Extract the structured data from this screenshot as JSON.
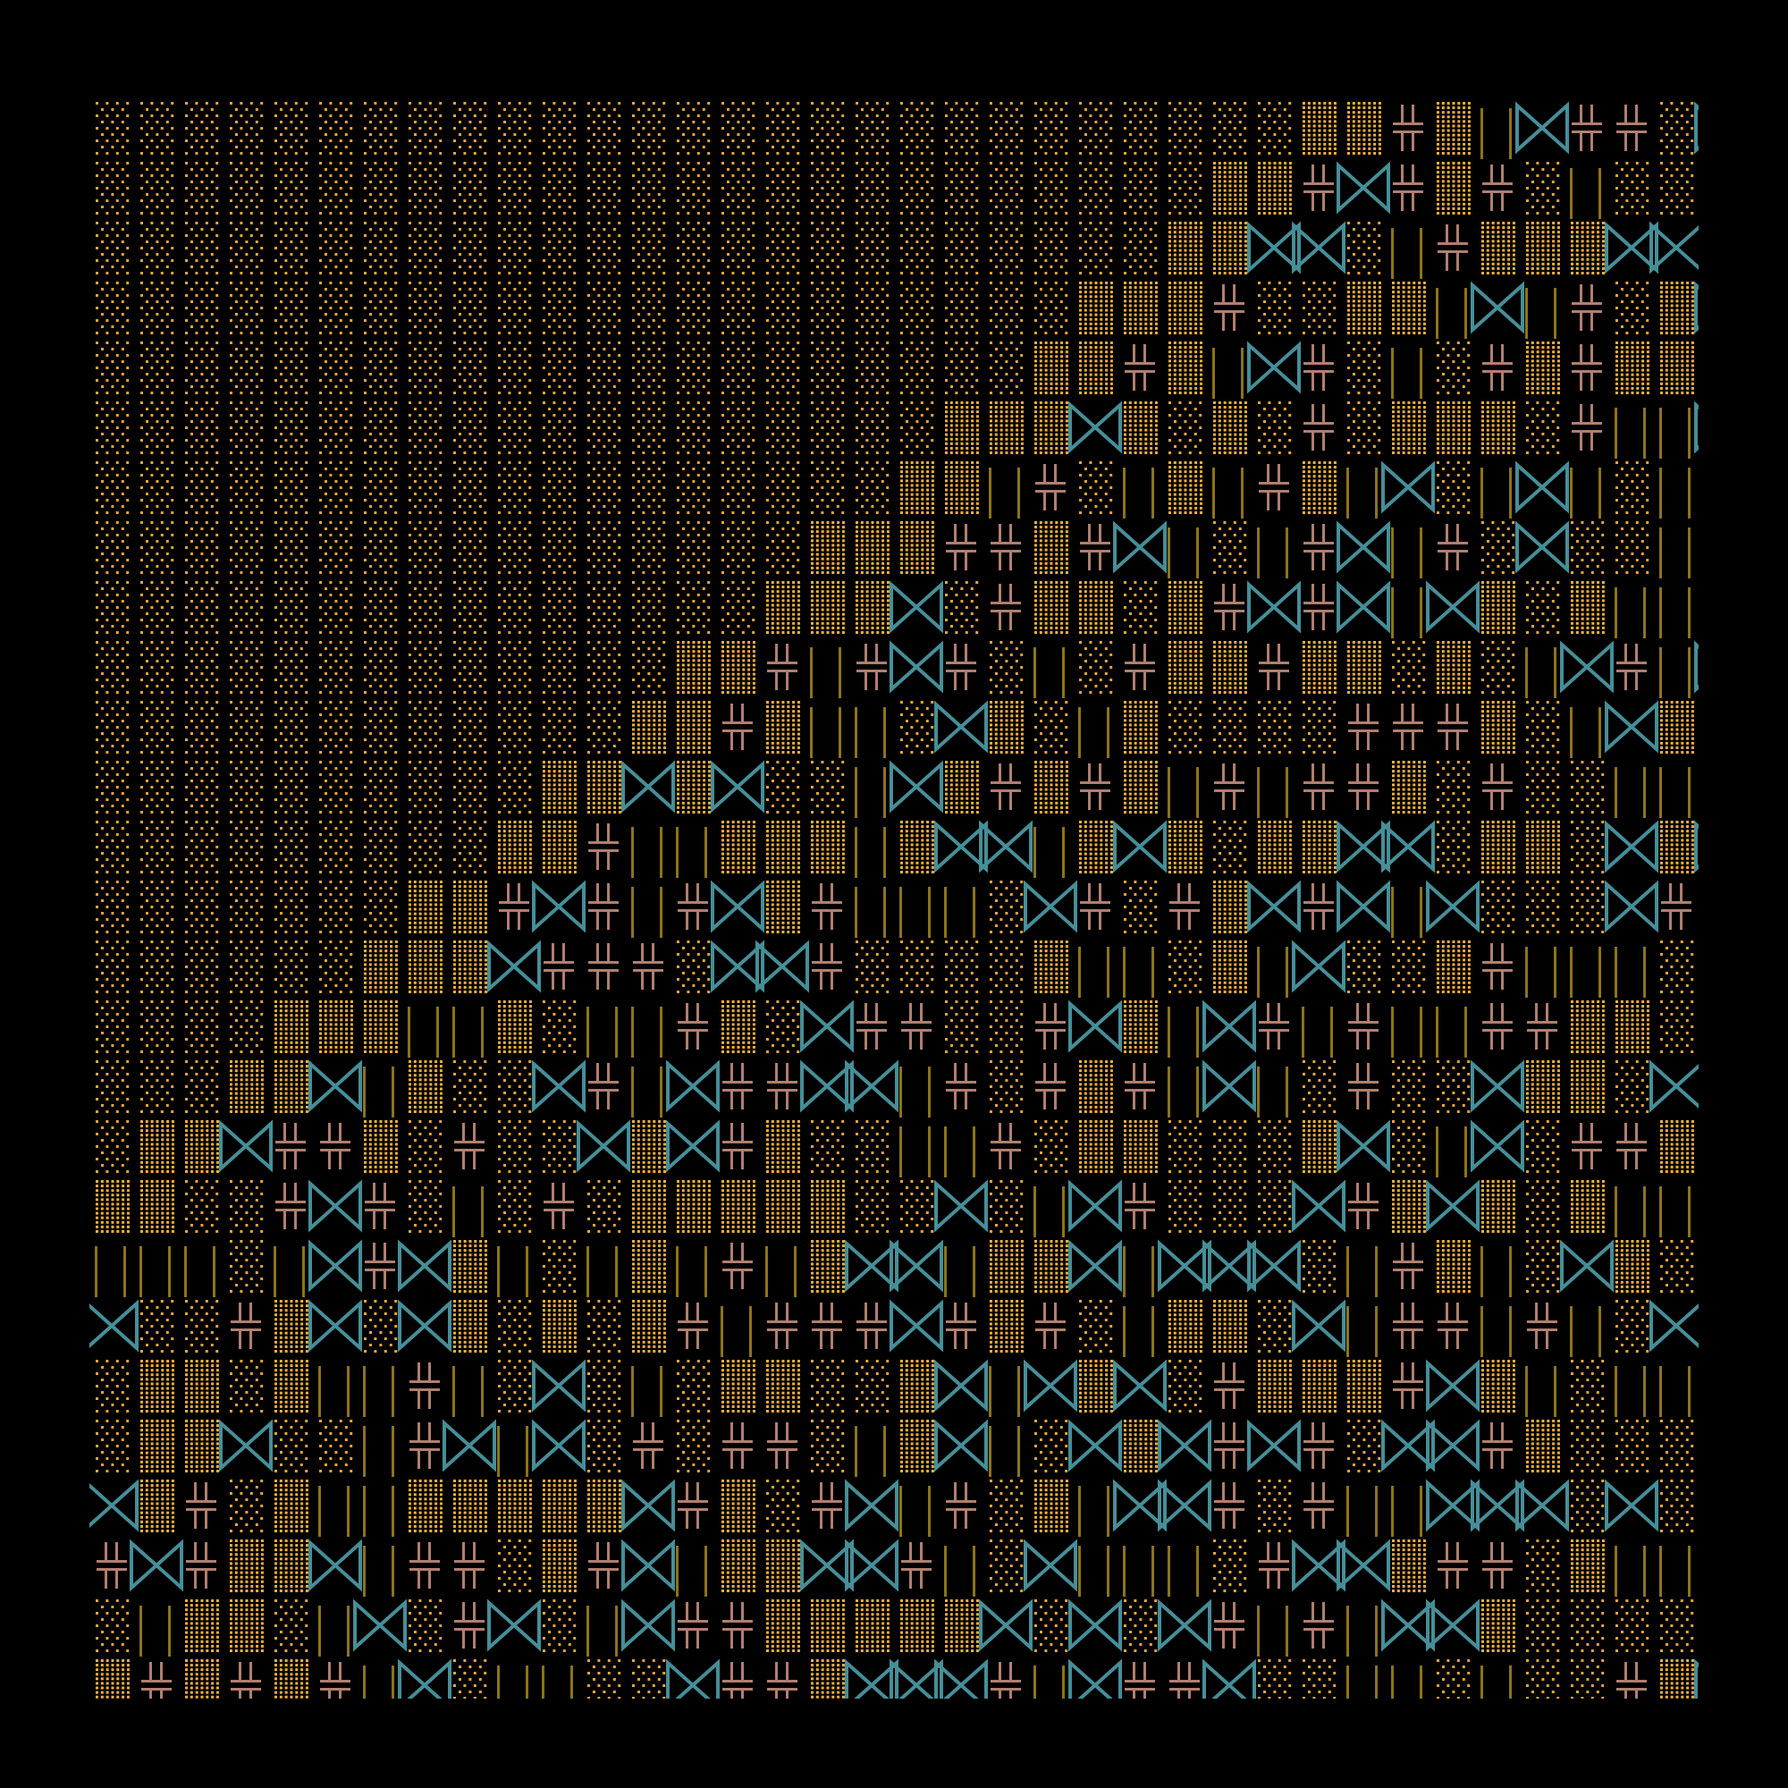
{
  "background": "#000000",
  "palette": {
    "sparse_dots": "#e8a53a",
    "dense_dots": "#f2b03c",
    "bars": "#8c7419",
    "cross": "#b07f70",
    "bowtie": "#468e98"
  },
  "glyph_types": [
    "sparse-dots",
    "dense-dots",
    "double-bar",
    "double-cross",
    "bowtie"
  ]
}
